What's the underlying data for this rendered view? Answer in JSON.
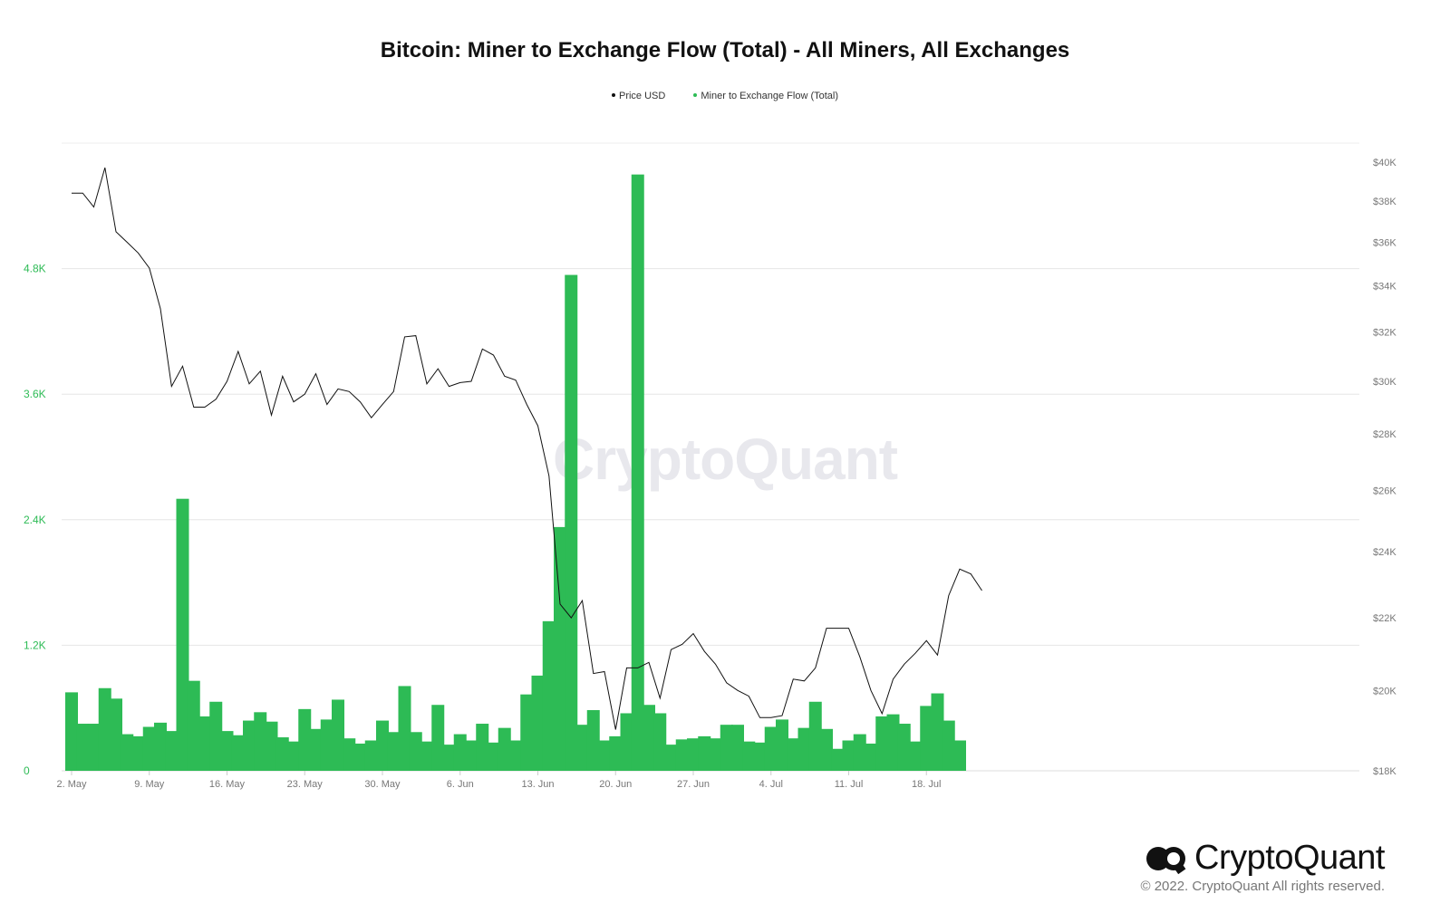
{
  "title": "Bitcoin: Miner to Exchange Flow (Total) - All Miners, All Exchanges",
  "legend": [
    {
      "label": "Price USD",
      "color": "#111111"
    },
    {
      "label": "Miner to Exchange Flow (Total)",
      "color": "#2dbb55"
    }
  ],
  "watermark": "CryptoQuant",
  "brand": {
    "name": "CryptoQuant",
    "logo_icon": "cryptoquant-logo-icon",
    "copyright": "© 2022. CryptoQuant All rights reserved."
  },
  "chart_data": {
    "type": "bar+line",
    "x_tick_labels": [
      "2. May",
      "9. May",
      "16. May",
      "23. May",
      "30. May",
      "6. Jun",
      "13. Jun",
      "20. Jun",
      "27. Jun",
      "4. Jul",
      "11. Jul",
      "18. Jul"
    ],
    "x_tick_day_index": [
      0,
      7,
      14,
      21,
      28,
      35,
      42,
      49,
      56,
      63,
      70,
      77
    ],
    "start_date": "2022-05-02",
    "left_axis": {
      "label": "",
      "ylim": [
        0,
        6000
      ],
      "ticks": [
        0,
        1200,
        2400,
        3600,
        4800
      ],
      "tick_labels": [
        "0",
        "1.2K",
        "2.4K",
        "3.6K",
        "4.8K"
      ],
      "color": "#2dbb55"
    },
    "right_axis": {
      "label": "",
      "scale": "log",
      "ylim": [
        18000,
        41000
      ],
      "ticks": [
        18000,
        20000,
        22000,
        24000,
        26000,
        28000,
        30000,
        32000,
        34000,
        36000,
        38000,
        40000
      ],
      "tick_labels": [
        "$18K",
        "$20K",
        "$22K",
        "$24K",
        "$26K",
        "$28K",
        "$30K",
        "$32K",
        "$34K",
        "$36K",
        "$38K",
        "$40K"
      ]
    },
    "series": [
      {
        "name": "Miner to Exchange Flow (Total)",
        "type": "bar",
        "axis": "left",
        "color": "#2dbb55",
        "values": [
          750,
          450,
          450,
          790,
          690,
          350,
          330,
          420,
          460,
          380,
          2600,
          860,
          520,
          660,
          380,
          340,
          480,
          560,
          470,
          320,
          280,
          590,
          400,
          490,
          680,
          310,
          260,
          290,
          480,
          370,
          810,
          370,
          280,
          630,
          250,
          350,
          290,
          450,
          270,
          410,
          290,
          730,
          910,
          1430,
          2330,
          4740,
          440,
          580,
          290,
          330,
          550,
          5700,
          630,
          550,
          250,
          300,
          310,
          330,
          310,
          440,
          440,
          280,
          270,
          420,
          490,
          310,
          410,
          660,
          400,
          210,
          290,
          350,
          260,
          520,
          540,
          450,
          280,
          620,
          740,
          480,
          290
        ]
      },
      {
        "name": "Price USD",
        "type": "line",
        "axis": "right",
        "color": "#111111",
        "values": [
          38400,
          38400,
          37700,
          39700,
          36500,
          36000,
          35500,
          34800,
          33000,
          29800,
          30600,
          29000,
          29000,
          29300,
          30000,
          31200,
          29900,
          30400,
          28700,
          30200,
          29200,
          29500,
          30300,
          29100,
          29700,
          29600,
          29200,
          28600,
          29100,
          29600,
          31800,
          31850,
          29900,
          30500,
          29800,
          29950,
          30000,
          31300,
          31050,
          30200,
          30050,
          29100,
          28300,
          26500,
          22400,
          22000,
          22500,
          20450,
          20500,
          19000,
          20600,
          20600,
          20750,
          19800,
          21100,
          21250,
          21550,
          21050,
          20700,
          20200,
          20000,
          19850,
          19300,
          19300,
          19350,
          20300,
          20250,
          20600,
          21700,
          21700,
          21700,
          20900,
          20000,
          19400,
          20300,
          20700,
          21000,
          21350,
          20950,
          22650,
          23450,
          23300,
          22800
        ]
      }
    ],
    "grid": true,
    "legend_position": "top-center"
  }
}
